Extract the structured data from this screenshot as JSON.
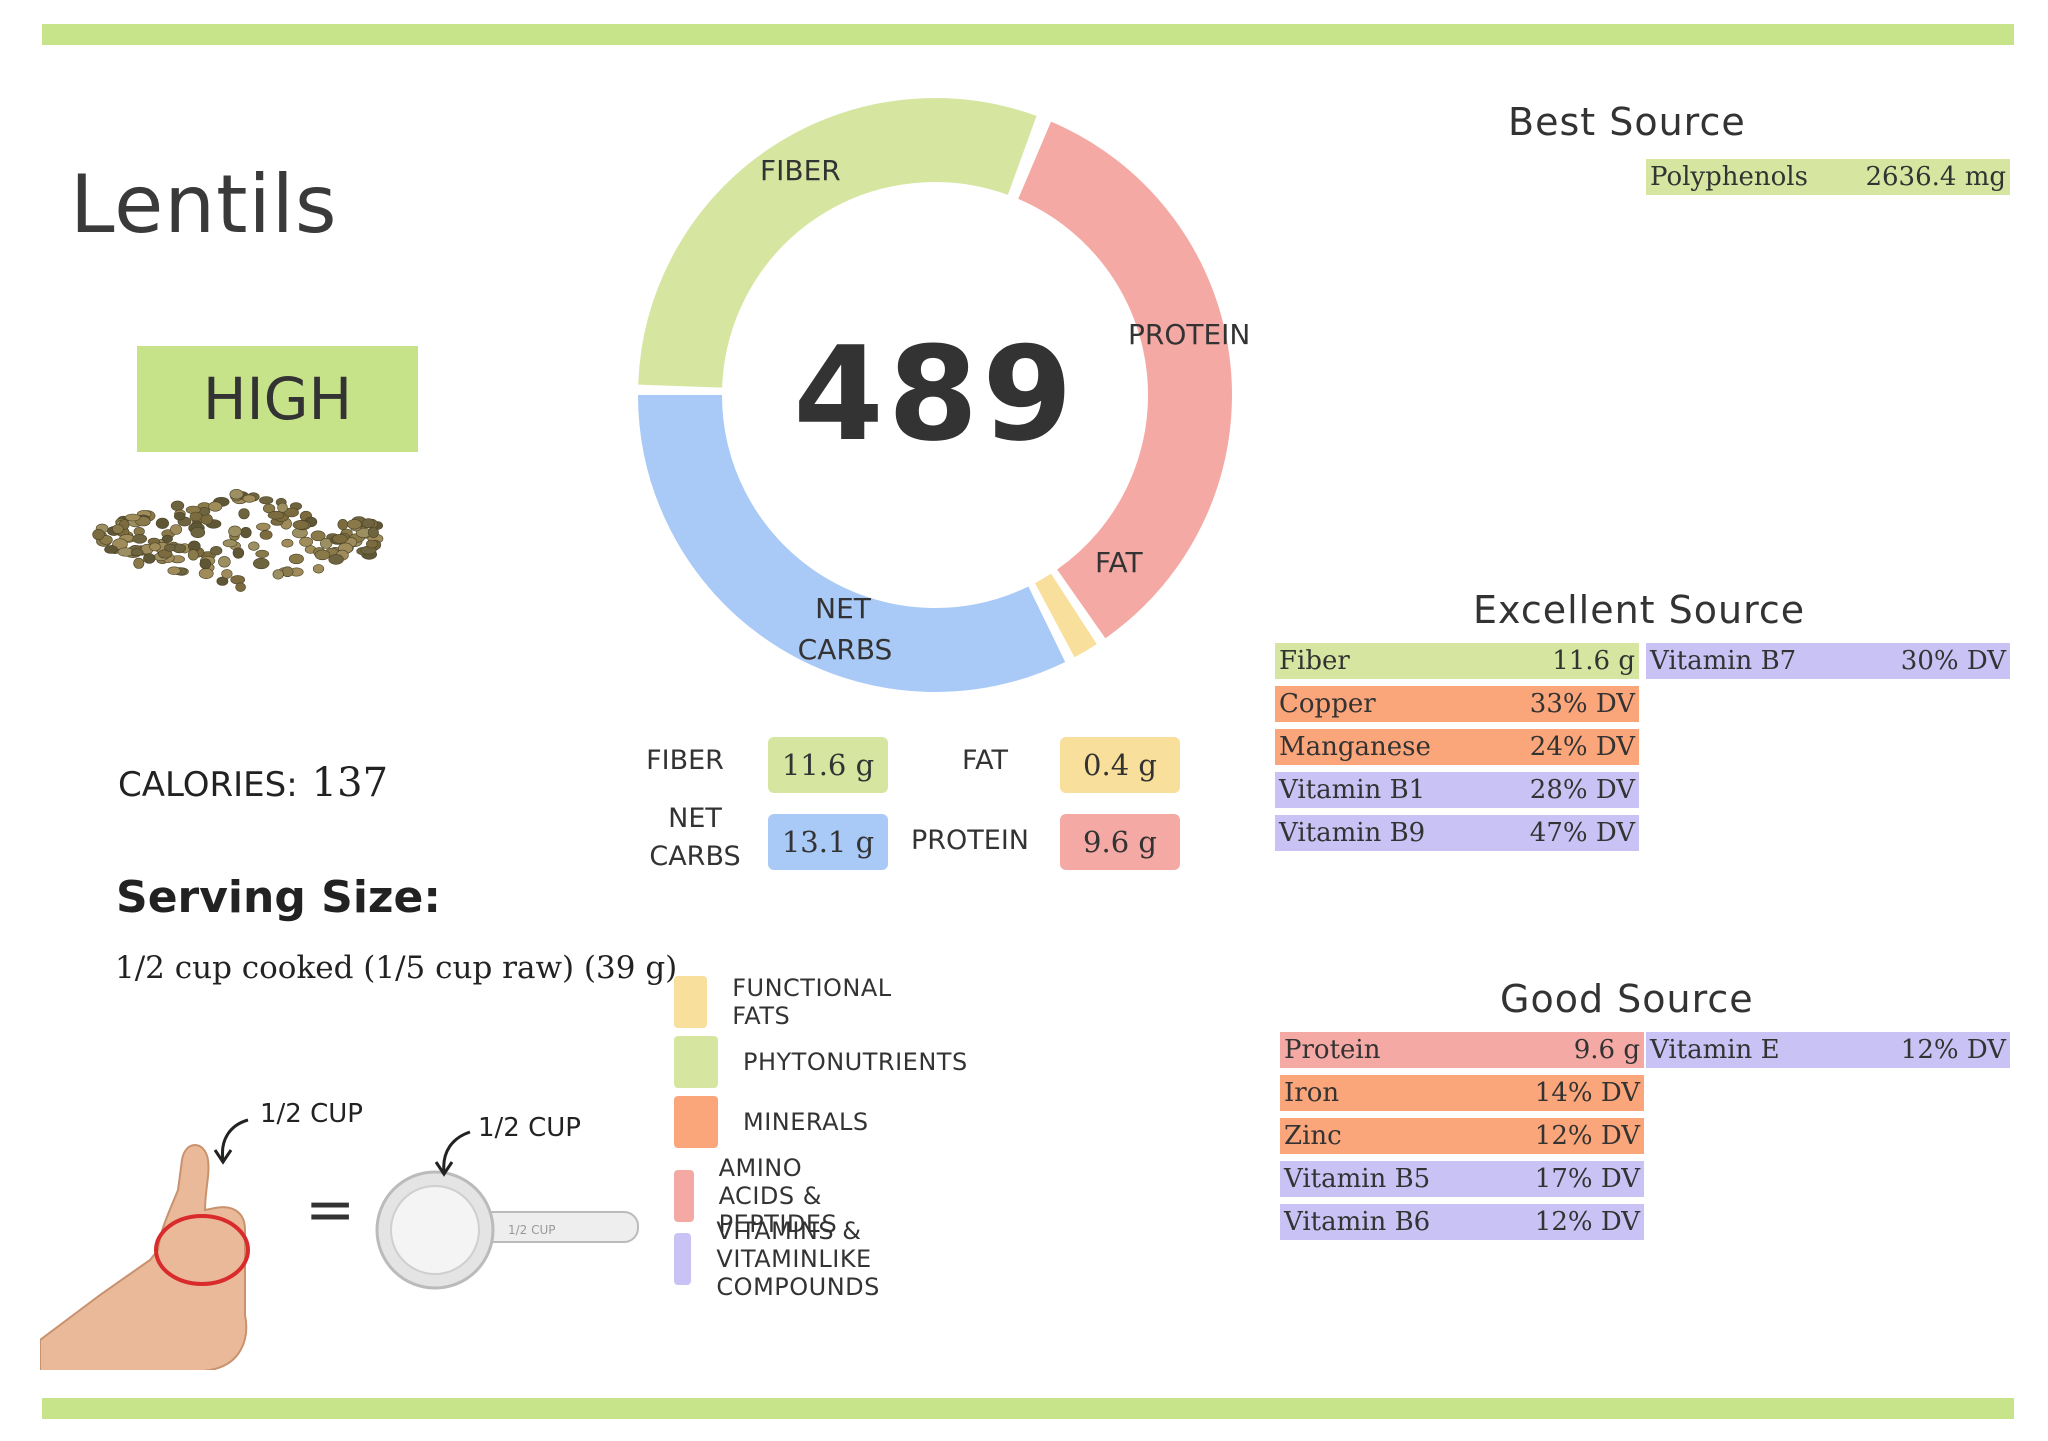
{
  "title": "Lentils",
  "rating": "HIGH",
  "calories": {
    "label": "CALORIES:",
    "value": "137"
  },
  "serving": {
    "heading": "Serving Size:",
    "text": "1/2 cup cooked (1/5 cup raw) (39 g)"
  },
  "illustration": {
    "hand_label": "1/2 CUP",
    "cup_label": "1/2 CUP",
    "equals": "=",
    "cup_handle_text": "1/2 CUP"
  },
  "score": "489",
  "donut": {
    "segments": [
      {
        "name": "FIBER",
        "color": "#d6e6a1"
      },
      {
        "name": "PROTEIN",
        "color": "#f4a9a4"
      },
      {
        "name": "FAT",
        "color": "#f9df9c"
      },
      {
        "name": "NET CARBS",
        "color": "#a9c9f7"
      }
    ],
    "labels": {
      "fiber": "FIBER",
      "protein": "PROTEIN",
      "fat": "FAT",
      "net": "NET",
      "carbs": "CARBS"
    }
  },
  "macros": {
    "fiber": {
      "label": "FIBER",
      "value": "11.6 g",
      "color": "#d6e6a1"
    },
    "fat": {
      "label": "FAT",
      "value": "0.4 g",
      "color": "#f9df9c"
    },
    "net_carbs": {
      "label1": "NET",
      "label2": "CARBS",
      "value": "13.1 g",
      "color": "#a9c9f7"
    },
    "protein": {
      "label": "PROTEIN",
      "value": "9.6 g",
      "color": "#f4a9a4"
    }
  },
  "legend": [
    {
      "label": "FUNCTIONAL FATS",
      "color": "#f9df9c"
    },
    {
      "label": "PHYTONUTRIENTS",
      "color": "#d6e6a1"
    },
    {
      "label": "MINERALS",
      "color": "#fba57a"
    },
    {
      "label": "AMINO ACIDS & PEPTIDES",
      "color": "#f4a9a4"
    },
    {
      "label": "VITAMINS & VITAMINLIKE COMPOUNDS",
      "color": "#c9c3f5"
    }
  ],
  "best_source": {
    "heading": "Best Source",
    "items": [
      {
        "name": "Polyphenols",
        "value": "2636.4 mg",
        "color": "#d6e6a1"
      }
    ]
  },
  "excellent_source": {
    "heading": "Excellent Source",
    "left": [
      {
        "name": "Fiber",
        "value": "11.6 g",
        "color": "#d6e6a1"
      },
      {
        "name": "Copper",
        "value": "33% DV",
        "color": "#fba57a"
      },
      {
        "name": "Manganese",
        "value": "24% DV",
        "color": "#fba57a"
      },
      {
        "name": "Vitamin B1",
        "value": "28% DV",
        "color": "#c9c3f5"
      },
      {
        "name": "Vitamin B9",
        "value": "47% DV",
        "color": "#c9c3f5"
      }
    ],
    "right": [
      {
        "name": "Vitamin B7",
        "value": "30% DV",
        "color": "#c9c3f5"
      }
    ]
  },
  "good_source": {
    "heading": "Good Source",
    "left": [
      {
        "name": "Protein",
        "value": "9.6 g",
        "color": "#f4a9a4"
      },
      {
        "name": "Iron",
        "value": "14% DV",
        "color": "#fba57a"
      },
      {
        "name": "Zinc",
        "value": "12% DV",
        "color": "#fba57a"
      },
      {
        "name": "Vitamin B5",
        "value": "17% DV",
        "color": "#c9c3f5"
      },
      {
        "name": "Vitamin B6",
        "value": "12% DV",
        "color": "#c9c3f5"
      }
    ],
    "right": [
      {
        "name": "Vitamin E",
        "value": "12% DV",
        "color": "#c9c3f5"
      }
    ]
  }
}
